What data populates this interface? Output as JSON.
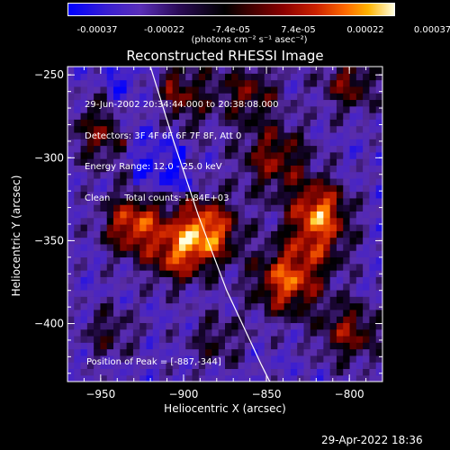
{
  "colorbar": {
    "ticks": [
      "-0.00037",
      "-0.00022",
      "-7.4e-05",
      "7.4e-05",
      "0.00022",
      "0.00037"
    ],
    "unit": "(photons cm⁻² s⁻¹ asec⁻²)"
  },
  "chart_data": {
    "type": "heatmap",
    "title": "Reconstructed RHESSI Image",
    "xlabel": "Heliocentric X (arcsec)",
    "ylabel": "Heliocentric Y (arcsec)",
    "xlim": [
      -970,
      -780
    ],
    "ylim": [
      -435,
      -245
    ],
    "x_ticks": [
      -950,
      -900,
      -850,
      -800
    ],
    "y_ticks": [
      -250,
      -300,
      -350,
      -400
    ],
    "x_tick_labels": [
      "−950",
      "−900",
      "−850",
      "−800"
    ],
    "y_tick_labels": [
      "−250",
      "−300",
      "−350",
      "−400"
    ],
    "color_range": [
      -0.00037,
      0.00037
    ],
    "peak": [
      -887,
      -344
    ],
    "limb_curve": [
      [
        -920,
        -245
      ],
      [
        -906,
        -290
      ],
      [
        -891,
        -335
      ],
      [
        -874,
        -380
      ],
      [
        -853,
        -425
      ],
      [
        -848,
        -435
      ]
    ],
    "annotations": [
      "29-Jun-2002 20:34:44.000 to 20:38:08.000",
      "Detectors: 3F 4F 6F 6F 7F 8F, Att 0",
      "Energy Range: 12.0 - 25.0 keV",
      "Clean     Total counts: 1.84E+03"
    ],
    "peak_label": "Position of Peak = [-887,-344]"
  },
  "footer": {
    "timestamp": "29-Apr-2022 18:36"
  }
}
